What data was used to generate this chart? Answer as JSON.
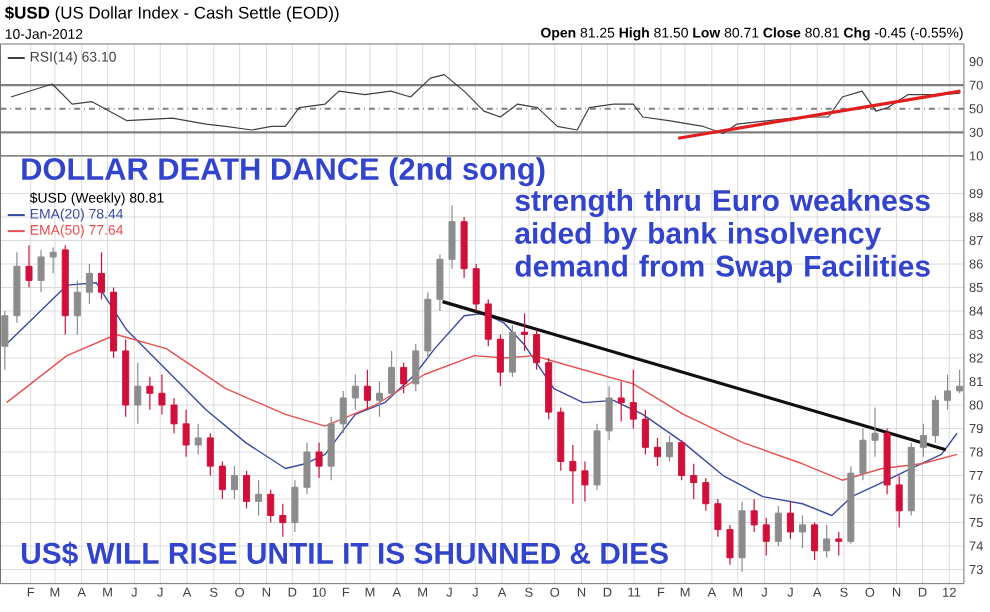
{
  "chart_data": [
    {
      "type": "line",
      "title": "**$USD** (US Dollar Index - Cash Settle (EOD))",
      "subtitle": "10-Jan-2012",
      "annotations": [
        "**Open** 81.25 **High** 81.50 **Low** 80.71 **Close** 80.81 **Chg** -0.45 (-0.55%)"
      ],
      "xlim": [
        "2008-12-28",
        "2012-01-18"
      ],
      "ylim": [
        10,
        105
      ],
      "yticks": [
        10,
        30,
        50,
        70,
        90
      ],
      "xticks": [
        {
          "value": "2009-02-01",
          "label": null
        },
        {
          "value": "2009-03-01",
          "label": null
        },
        {
          "value": "2009-04-01",
          "label": null
        },
        {
          "value": "2009-05-01",
          "label": null
        },
        {
          "value": "2009-06-01",
          "label": null
        },
        {
          "value": "2009-07-01",
          "label": null
        },
        {
          "value": "2009-08-01",
          "label": null
        },
        {
          "value": "2009-09-01",
          "label": null
        },
        {
          "value": "2009-10-01",
          "label": null
        },
        {
          "value": "2009-11-01",
          "label": null
        },
        {
          "value": "2009-12-01",
          "label": null
        },
        {
          "value": "2010-01-01",
          "label": null
        },
        {
          "value": "2010-02-01",
          "label": null
        },
        {
          "value": "2010-03-01",
          "label": null
        },
        {
          "value": "2010-04-01",
          "label": null
        },
        {
          "value": "2010-05-01",
          "label": null
        },
        {
          "value": "2010-06-01",
          "label": null
        },
        {
          "value": "2010-07-01",
          "label": null
        },
        {
          "value": "2010-08-01",
          "label": null
        },
        {
          "value": "2010-09-01",
          "label": null
        },
        {
          "value": "2010-10-01",
          "label": null
        },
        {
          "value": "2010-11-01",
          "label": null
        },
        {
          "value": "2010-12-01",
          "label": null
        },
        {
          "value": "2011-01-01",
          "label": null
        },
        {
          "value": "2011-02-01",
          "label": null
        },
        {
          "value": "2011-03-01",
          "label": null
        },
        {
          "value": "2011-04-01",
          "label": null
        },
        {
          "value": "2011-05-01",
          "label": null
        },
        {
          "value": "2011-06-01",
          "label": null
        },
        {
          "value": "2011-07-01",
          "label": null
        },
        {
          "value": "2011-08-01",
          "label": null
        },
        {
          "value": "2011-09-01",
          "label": null
        },
        {
          "value": "2011-10-01",
          "label": null
        },
        {
          "value": "2011-11-01",
          "label": null
        },
        {
          "value": "2011-12-01",
          "label": null
        },
        {
          "value": "2012-01-01",
          "label": null
        }
      ],
      "grid": "x",
      "legend": "top left",
      "tick_labels": "y",
      "ref_lines": [
        {
          "axis": "y",
          "value": 70,
          "color": "#808080",
          "line_style": "solid"
        },
        {
          "axis": "y",
          "value": 50,
          "color": "#808080",
          "line_style": "dashed"
        },
        {
          "axis": "y",
          "value": 30,
          "color": "#808080",
          "line_style": "solid"
        }
      ],
      "series": [
        {
          "name": "RSI(14) 63.10",
          "color": "#404040",
          "x": [
            "2009-01-09",
            "2009-02-26",
            "2009-03-21",
            "2009-04-13",
            "2009-05-23",
            "2009-07-15",
            "2009-08-23",
            "2009-09-15",
            "2009-10-15",
            "2009-11-07",
            "2009-11-23",
            "2009-12-09",
            "2010-01-08",
            "2010-01-24",
            "2010-02-23",
            "2010-03-25",
            "2010-04-17",
            "2010-05-10",
            "2010-05-26",
            "2010-06-18",
            "2010-07-11",
            "2010-07-30",
            "2010-08-19",
            "2010-09-11",
            "2010-10-04",
            "2010-10-27",
            "2010-11-10",
            "2010-12-08",
            "2010-12-31",
            "2011-01-11",
            "2011-02-10",
            "2011-03-22",
            "2011-04-14",
            "2011-04-30",
            "2011-06-06",
            "2011-07-15",
            "2011-08-14",
            "2011-08-30",
            "2011-09-22",
            "2011-10-08",
            "2011-10-22",
            "2011-11-14",
            "2011-12-16",
            "2012-01-13"
          ],
          "values": [
            60,
            71,
            54,
            56,
            40,
            42,
            37,
            35,
            32,
            35,
            35,
            51,
            54,
            65,
            62,
            65,
            60,
            76,
            79,
            65,
            48,
            43,
            54,
            51,
            35,
            32,
            51,
            54,
            54,
            43,
            40,
            35,
            29,
            37,
            40,
            43,
            43,
            60,
            65,
            48,
            51,
            62,
            62,
            63.1
          ]
        },
        {
          "type": "line",
          "color": "#e02020",
          "x": [
            "2011-02-21",
            "2012-01-14"
          ],
          "values": [
            25,
            65
          ]
        }
      ]
    },
    {
      "type": "candlestick",
      "legend_title": "$USD (Weekly) 80.81",
      "annotations": [
        "DOLLAR DEATH DANCE (2nd song)",
        "strength thru Euro weakness aided by bank insolvency demand from Swap Facilities",
        "US$ WILL RISE UNTIL IT IS SHUNNED & DIES"
      ],
      "xlim": [
        "2008-12-28",
        "2012-01-18"
      ],
      "ylim": [
        72.4,
        90.6
      ],
      "yticks": [
        73,
        74,
        75,
        76,
        77,
        78,
        79,
        80,
        81,
        82,
        83,
        84,
        85,
        86,
        87,
        88,
        89
      ],
      "xticks": [
        {
          "value": "2009-02-01",
          "label": "F"
        },
        {
          "value": "2009-03-01",
          "label": "M"
        },
        {
          "value": "2009-04-01",
          "label": "A"
        },
        {
          "value": "2009-05-01",
          "label": "M"
        },
        {
          "value": "2009-06-01",
          "label": "J"
        },
        {
          "value": "2009-07-01",
          "label": "J"
        },
        {
          "value": "2009-08-01",
          "label": "A"
        },
        {
          "value": "2009-09-01",
          "label": "S"
        },
        {
          "value": "2009-10-01",
          "label": "O"
        },
        {
          "value": "2009-11-01",
          "label": "N"
        },
        {
          "value": "2009-12-01",
          "label": "D"
        },
        {
          "value": "2010-01-01",
          "label": "10"
        },
        {
          "value": "2010-02-01",
          "label": "F"
        },
        {
          "value": "2010-03-01",
          "label": "M"
        },
        {
          "value": "2010-04-01",
          "label": "A"
        },
        {
          "value": "2010-05-01",
          "label": "M"
        },
        {
          "value": "2010-06-01",
          "label": "J"
        },
        {
          "value": "2010-07-01",
          "label": "J"
        },
        {
          "value": "2010-08-01",
          "label": "A"
        },
        {
          "value": "2010-09-01",
          "label": "S"
        },
        {
          "value": "2010-10-01",
          "label": "O"
        },
        {
          "value": "2010-11-01",
          "label": "N"
        },
        {
          "value": "2010-12-01",
          "label": "D"
        },
        {
          "value": "2011-01-01",
          "label": "11"
        },
        {
          "value": "2011-02-01",
          "label": "F"
        },
        {
          "value": "2011-03-01",
          "label": "M"
        },
        {
          "value": "2011-04-01",
          "label": "A"
        },
        {
          "value": "2011-05-01",
          "label": "M"
        },
        {
          "value": "2011-06-01",
          "label": "J"
        },
        {
          "value": "2011-07-01",
          "label": "J"
        },
        {
          "value": "2011-08-01",
          "label": "A"
        },
        {
          "value": "2011-09-01",
          "label": "S"
        },
        {
          "value": "2011-10-01",
          "label": "O"
        },
        {
          "value": "2011-11-01",
          "label": "N"
        },
        {
          "value": "2011-12-01",
          "label": "D"
        },
        {
          "value": "2012-01-01",
          "label": "12"
        }
      ],
      "grid": true,
      "legend": "top left",
      "x": [
        "2009-01-02",
        "2009-01-16",
        "2009-01-30",
        "2009-02-13",
        "2009-02-27",
        "2009-03-13",
        "2009-03-27",
        "2009-04-10",
        "2009-04-24",
        "2009-05-08",
        "2009-05-22",
        "2009-06-05",
        "2009-06-19",
        "2009-07-03",
        "2009-07-17",
        "2009-07-31",
        "2009-08-14",
        "2009-08-28",
        "2009-09-11",
        "2009-09-25",
        "2009-10-09",
        "2009-10-23",
        "2009-11-06",
        "2009-11-20",
        "2009-12-04",
        "2009-12-18",
        "2010-01-01",
        "2010-01-15",
        "2010-01-29",
        "2010-02-12",
        "2010-02-26",
        "2010-03-12",
        "2010-03-26",
        "2010-04-09",
        "2010-04-23",
        "2010-05-07",
        "2010-05-21",
        "2010-06-04",
        "2010-06-18",
        "2010-07-02",
        "2010-07-16",
        "2010-07-30",
        "2010-08-13",
        "2010-08-27",
        "2010-09-10",
        "2010-09-24",
        "2010-10-08",
        "2010-10-22",
        "2010-11-05",
        "2010-11-19",
        "2010-12-03",
        "2010-12-17",
        "2010-12-31",
        "2011-01-14",
        "2011-01-28",
        "2011-02-11",
        "2011-02-25",
        "2011-03-11",
        "2011-03-25",
        "2011-04-08",
        "2011-04-22",
        "2011-05-06",
        "2011-05-20",
        "2011-06-03",
        "2011-06-17",
        "2011-07-01",
        "2011-07-15",
        "2011-07-29",
        "2011-08-12",
        "2011-08-26",
        "2011-09-09",
        "2011-09-23",
        "2011-10-07",
        "2011-10-21",
        "2011-11-04",
        "2011-11-18",
        "2011-12-02",
        "2011-12-16",
        "2011-12-30",
        "2012-01-13"
      ],
      "ohlc": [
        [
          82.5,
          84.0,
          81.5,
          83.8
        ],
        [
          83.8,
          86.5,
          83.5,
          85.9
        ],
        [
          85.9,
          86.8,
          85.0,
          85.3
        ],
        [
          85.3,
          86.6,
          84.8,
          86.3
        ],
        [
          86.3,
          86.7,
          85.6,
          86.5
        ],
        [
          86.6,
          86.8,
          83.0,
          83.8
        ],
        [
          83.8,
          85.3,
          83.0,
          84.8
        ],
        [
          84.8,
          86.0,
          84.3,
          85.6
        ],
        [
          85.6,
          86.5,
          84.5,
          84.8
        ],
        [
          84.8,
          85.0,
          82.0,
          82.3
        ],
        [
          82.3,
          82.8,
          79.5,
          80.0
        ],
        [
          80.0,
          81.8,
          79.2,
          80.8
        ],
        [
          80.8,
          81.2,
          79.8,
          80.5
        ],
        [
          80.5,
          81.3,
          79.6,
          80.0
        ],
        [
          80.0,
          80.3,
          78.8,
          79.2
        ],
        [
          79.2,
          79.8,
          77.8,
          78.3
        ],
        [
          78.3,
          79.2,
          77.9,
          78.6
        ],
        [
          78.6,
          78.8,
          77.0,
          77.4
        ],
        [
          77.4,
          77.6,
          76.0,
          76.4
        ],
        [
          76.4,
          77.4,
          76.0,
          77.0
        ],
        [
          77.0,
          77.2,
          75.6,
          75.9
        ],
        [
          75.9,
          76.8,
          75.3,
          76.2
        ],
        [
          76.2,
          76.4,
          75.0,
          75.3
        ],
        [
          75.3,
          75.8,
          74.4,
          75.0
        ],
        [
          75.0,
          76.8,
          74.6,
          76.5
        ],
        [
          76.5,
          78.4,
          76.2,
          78.0
        ],
        [
          78.0,
          78.4,
          76.9,
          77.4
        ],
        [
          77.4,
          79.5,
          76.8,
          79.2
        ],
        [
          79.2,
          80.6,
          78.8,
          80.3
        ],
        [
          80.3,
          81.3,
          79.8,
          80.8
        ],
        [
          80.8,
          81.5,
          79.8,
          80.2
        ],
        [
          80.2,
          81.0,
          79.5,
          80.5
        ],
        [
          80.5,
          82.3,
          80.3,
          81.6
        ],
        [
          81.6,
          81.8,
          80.5,
          80.9
        ],
        [
          80.9,
          82.6,
          80.6,
          82.3
        ],
        [
          82.3,
          84.8,
          82.0,
          84.5
        ],
        [
          84.5,
          86.4,
          84.0,
          86.2
        ],
        [
          86.2,
          88.5,
          85.8,
          87.8
        ],
        [
          87.8,
          88.0,
          85.4,
          85.8
        ],
        [
          85.8,
          86.0,
          84.0,
          84.3
        ],
        [
          84.3,
          84.5,
          82.5,
          82.8
        ],
        [
          82.8,
          83.0,
          80.8,
          81.4
        ],
        [
          81.4,
          83.4,
          81.2,
          83.1
        ],
        [
          83.1,
          83.9,
          82.3,
          83.0
        ],
        [
          83.0,
          83.2,
          81.5,
          81.8
        ],
        [
          81.8,
          82.0,
          79.4,
          79.7
        ],
        [
          79.7,
          79.9,
          77.2,
          77.6
        ],
        [
          77.6,
          78.3,
          75.8,
          77.2
        ],
        [
          77.2,
          77.6,
          75.9,
          76.6
        ],
        [
          76.6,
          79.2,
          76.4,
          78.9
        ],
        [
          78.9,
          80.8,
          78.5,
          80.3
        ],
        [
          80.3,
          81.0,
          79.3,
          80.1
        ],
        [
          80.1,
          81.5,
          79.0,
          79.4
        ],
        [
          79.4,
          79.8,
          77.9,
          78.2
        ],
        [
          78.2,
          78.6,
          77.4,
          77.8
        ],
        [
          77.8,
          78.7,
          77.6,
          78.4
        ],
        [
          78.4,
          78.5,
          76.8,
          77.0
        ],
        [
          77.0,
          77.5,
          76.0,
          76.7
        ],
        [
          76.7,
          76.9,
          75.5,
          75.8
        ],
        [
          75.8,
          76.0,
          74.4,
          74.7
        ],
        [
          74.7,
          74.9,
          73.2,
          73.5
        ],
        [
          73.5,
          75.9,
          72.9,
          75.5
        ],
        [
          75.5,
          76.0,
          74.6,
          74.9
        ],
        [
          74.9,
          75.2,
          73.6,
          74.2
        ],
        [
          74.2,
          75.7,
          74.0,
          75.4
        ],
        [
          75.4,
          75.9,
          74.3,
          74.6
        ],
        [
          74.6,
          75.3,
          73.9,
          74.9
        ],
        [
          74.9,
          75.0,
          73.4,
          73.8
        ],
        [
          73.8,
          74.9,
          73.5,
          74.3
        ],
        [
          74.3,
          74.6,
          73.6,
          74.2
        ],
        [
          74.2,
          77.4,
          74.1,
          77.1
        ],
        [
          77.1,
          79.0,
          76.8,
          78.5
        ],
        [
          78.5,
          79.9,
          77.8,
          78.8
        ],
        [
          78.8,
          79.0,
          76.2,
          76.6
        ],
        [
          76.6,
          77.0,
          74.8,
          75.5
        ],
        [
          75.5,
          78.4,
          75.3,
          78.2
        ],
        [
          78.2,
          79.2,
          77.8,
          78.7
        ],
        [
          78.7,
          80.4,
          78.4,
          80.2
        ],
        [
          80.2,
          81.3,
          79.8,
          80.6
        ],
        [
          80.6,
          81.5,
          80.5,
          80.8
        ]
      ],
      "colors": [
        "#8c8c8c",
        "#8c8c8c",
        "#d0103a",
        "#8c8c8c",
        "#8c8c8c",
        "#d0103a",
        "#8c8c8c",
        "#8c8c8c",
        "#d0103a",
        "#d0103a",
        "#d0103a",
        "#8c8c8c",
        "#d0103a",
        "#d0103a",
        "#d0103a",
        "#d0103a",
        "#8c8c8c",
        "#d0103a",
        "#d0103a",
        "#8c8c8c",
        "#d0103a",
        "#8c8c8c",
        "#d0103a",
        "#d0103a",
        "#8c8c8c",
        "#8c8c8c",
        "#d0103a",
        "#8c8c8c",
        "#8c8c8c",
        "#8c8c8c",
        "#d0103a",
        "#8c8c8c",
        "#8c8c8c",
        "#d0103a",
        "#8c8c8c",
        "#8c8c8c",
        "#8c8c8c",
        "#8c8c8c",
        "#d0103a",
        "#d0103a",
        "#d0103a",
        "#d0103a",
        "#8c8c8c",
        "#d0103a",
        "#d0103a",
        "#d0103a",
        "#d0103a",
        "#d0103a",
        "#d0103a",
        "#8c8c8c",
        "#8c8c8c",
        "#d0103a",
        "#d0103a",
        "#d0103a",
        "#d0103a",
        "#8c8c8c",
        "#d0103a",
        "#d0103a",
        "#d0103a",
        "#d0103a",
        "#d0103a",
        "#8c8c8c",
        "#d0103a",
        "#d0103a",
        "#8c8c8c",
        "#d0103a",
        "#8c8c8c",
        "#d0103a",
        "#8c8c8c",
        "#d0103a",
        "#8c8c8c",
        "#8c8c8c",
        "#8c8c8c",
        "#d0103a",
        "#d0103a",
        "#8c8c8c",
        "#8c8c8c",
        "#8c8c8c",
        "#8c8c8c",
        "#8c8c8c"
      ],
      "series": [
        {
          "type": "line",
          "name": "EMA(20) 78.44",
          "color": "#3a4aa0",
          "x": [
            "2009-01-04",
            "2009-03-15",
            "2009-04-18",
            "2009-05-23",
            "2009-07-08",
            "2009-08-23",
            "2009-10-08",
            "2009-11-23",
            "2009-12-16",
            "2010-01-08",
            "2010-02-12",
            "2010-03-18",
            "2010-04-22",
            "2010-05-15",
            "2010-06-18",
            "2010-07-11",
            "2010-08-03",
            "2010-08-26",
            "2010-09-30",
            "2010-11-03",
            "2010-12-08",
            "2011-01-11",
            "2011-02-27",
            "2011-04-14",
            "2011-05-30",
            "2011-07-15",
            "2011-08-18",
            "2011-09-10",
            "2011-10-15",
            "2011-11-18",
            "2011-12-23",
            "2012-01-10"
          ],
          "values": [
            82.6,
            85.1,
            85.2,
            83.2,
            81.5,
            79.8,
            78.4,
            77.3,
            77.5,
            77.9,
            79.6,
            80.1,
            81.3,
            82.4,
            83.8,
            83.9,
            83.5,
            82.6,
            80.7,
            80.1,
            80.2,
            79.6,
            78.4,
            77.0,
            76.1,
            75.8,
            75.3,
            76.1,
            76.7,
            77.3,
            77.9,
            78.8
          ]
        },
        {
          "type": "line",
          "name": "EMA(50) 77.64",
          "color": "#e85050",
          "x": [
            "2009-01-04",
            "2009-03-15",
            "2009-05-11",
            "2009-07-08",
            "2009-09-15",
            "2009-11-23",
            "2010-01-08",
            "2010-03-07",
            "2010-05-03",
            "2010-06-30",
            "2010-08-03",
            "2010-09-07",
            "2010-11-03",
            "2010-12-31",
            "2011-02-27",
            "2011-05-07",
            "2011-07-15",
            "2011-08-30",
            "2011-10-15",
            "2011-11-30",
            "2012-01-10"
          ],
          "values": [
            80.1,
            82.1,
            83.0,
            82.4,
            80.7,
            79.6,
            79.1,
            80.0,
            81.3,
            82.1,
            82.0,
            82.1,
            81.5,
            80.9,
            79.6,
            78.4,
            77.5,
            76.8,
            77.3,
            77.5,
            77.9
          ]
        },
        {
          "type": "line",
          "color": "#101010",
          "x": [
            "2010-05-24",
            "2011-12-28"
          ],
          "values": [
            84.4,
            78.1
          ]
        }
      ]
    }
  ]
}
